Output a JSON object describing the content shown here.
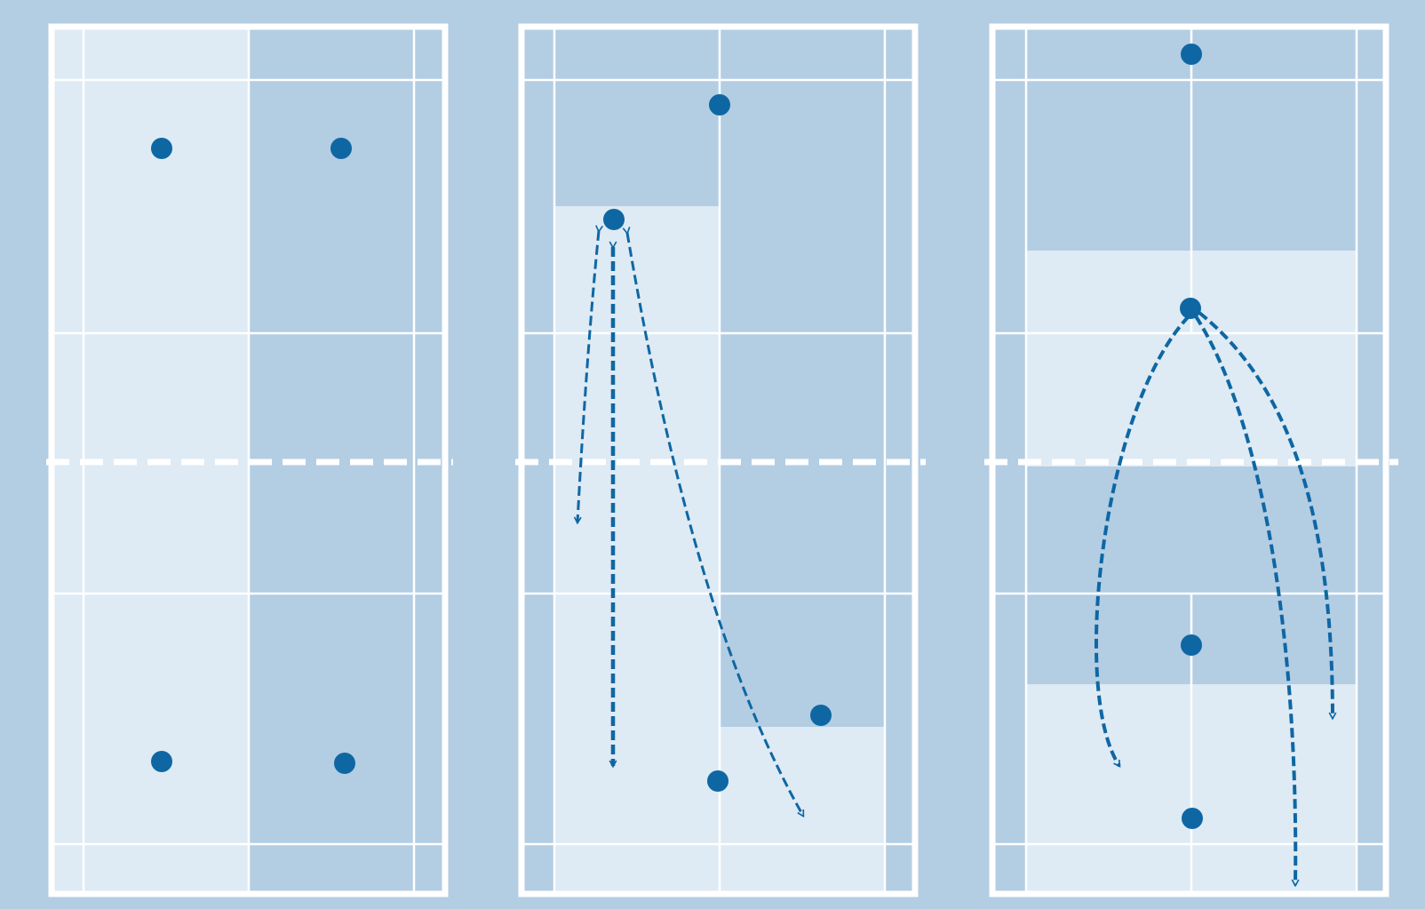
{
  "colors": {
    "background": "#b3cde3",
    "court_light": "#deeaf4",
    "court_dark": "#b3cde3",
    "lines": "#ffffff",
    "player": "#0e67a3",
    "arrow": "#0e67a3"
  },
  "icons": {
    "player": "filled-circle",
    "shot_path": "dashed-curved-arrow",
    "net": "dashed-white-line"
  },
  "courts": [
    {
      "name": "court-left",
      "player_count": 4,
      "shot_count": 0
    },
    {
      "name": "court-middle",
      "player_count": 4,
      "shot_count": 3
    },
    {
      "name": "court-right",
      "player_count": 4,
      "shot_count": 3
    }
  ]
}
